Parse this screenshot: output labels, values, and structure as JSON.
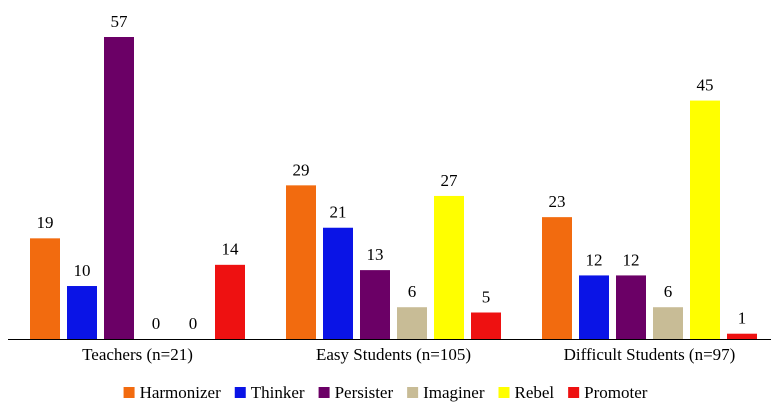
{
  "chart_data": {
    "type": "bar",
    "categories": [
      "Teachers (n=21)",
      "Easy Students (n=105)",
      "Difficult Students (n=97)"
    ],
    "series": [
      {
        "name": "Harmonizer",
        "color": "#f26b0f",
        "values": [
          19,
          29,
          23
        ]
      },
      {
        "name": "Thinker",
        "color": "#0a14e6",
        "values": [
          10,
          21,
          12
        ]
      },
      {
        "name": "Persister",
        "color": "#6b0066",
        "values": [
          57,
          13,
          12
        ]
      },
      {
        "name": "Imaginer",
        "color": "#c8bc96",
        "values": [
          0,
          6,
          6
        ]
      },
      {
        "name": "Rebel",
        "color": "#ffff00",
        "values": [
          0,
          27,
          45
        ]
      },
      {
        "name": "Promoter",
        "color": "#ee1111",
        "values": [
          14,
          5,
          1
        ]
      }
    ],
    "legend": "bottom"
  }
}
